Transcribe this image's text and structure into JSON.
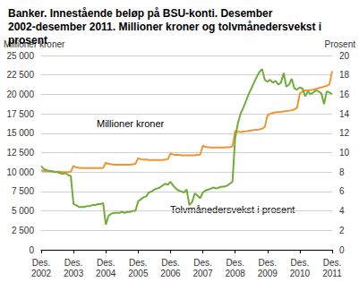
{
  "chart_data": {
    "type": "line",
    "title": "Banker. Innestående beløp på BSU-konti. Desember 2002-desember 2011. Millioner kroner og tolvmånedersvekst i prosent",
    "ylabel": "Millioner kroner",
    "y2label": "Prosent",
    "annotations": [
      {
        "text": "Millioner kroner"
      },
      {
        "text": "Tolvmånedersvekst i prosent"
      }
    ],
    "x": [
      "Des.\n2002",
      null,
      null,
      null,
      null,
      null,
      null,
      null,
      null,
      null,
      null,
      null,
      "Des.\n2003",
      null,
      null,
      null,
      null,
      null,
      null,
      null,
      null,
      null,
      null,
      null,
      "Des.\n2004",
      null,
      null,
      null,
      null,
      null,
      null,
      null,
      null,
      null,
      null,
      null,
      "Des.\n2005",
      null,
      null,
      null,
      null,
      null,
      null,
      null,
      null,
      null,
      null,
      null,
      "Des.\n2006",
      null,
      null,
      null,
      null,
      null,
      null,
      null,
      null,
      null,
      null,
      null,
      "Des.\n2007",
      null,
      null,
      null,
      null,
      null,
      null,
      null,
      null,
      null,
      null,
      null,
      "Des.\n2008",
      null,
      null,
      null,
      null,
      null,
      null,
      null,
      null,
      null,
      null,
      null,
      "Des.\n2009",
      null,
      null,
      null,
      null,
      null,
      null,
      null,
      null,
      null,
      null,
      null,
      "Des.\n2010",
      null,
      null,
      null,
      null,
      null,
      null,
      null,
      null,
      null,
      null,
      null,
      "Des.\n2011"
    ],
    "series": [
      {
        "name": "Millioner kroner",
        "color": "#f39433",
        "values": [
          10200,
          10150,
          10100,
          10100,
          10050,
          10050,
          10050,
          10050,
          10000,
          10000,
          10000,
          10050,
          10800,
          10600,
          10550,
          10500,
          10500,
          10500,
          10500,
          10500,
          10500,
          10500,
          10500,
          10550,
          11200,
          11050,
          11000,
          10950,
          10950,
          10950,
          10950,
          10950,
          10950,
          10950,
          11000,
          11050,
          11800,
          11650,
          11600,
          11600,
          11550,
          11550,
          11550,
          11550,
          11550,
          11550,
          11600,
          11650,
          12400,
          12250,
          12200,
          12200,
          12150,
          12150,
          12150,
          12150,
          12150,
          12150,
          12200,
          12250,
          13400,
          13250,
          13200,
          13150,
          13150,
          13150,
          13150,
          13150,
          13150,
          13200,
          13200,
          13300,
          15300,
          15200,
          15150,
          15200,
          15250,
          15300,
          15350,
          15400,
          15450,
          15500,
          15600,
          15800,
          17300,
          17500,
          17600,
          17700,
          17700,
          17750,
          17800,
          17850,
          17900,
          17950,
          18050,
          18300,
          20100,
          20400,
          20500,
          20500,
          20550,
          20600,
          20700,
          20800,
          20900,
          21000,
          21100,
          21300,
          23000
        ]
      },
      {
        "name": "Tolvmånedersvekst i prosent",
        "color": "#6fac3a",
        "axis": "y2",
        "values": [
          8.6,
          8.3,
          8.2,
          8.1,
          8.1,
          8.0,
          8.0,
          7.9,
          7.8,
          7.9,
          7.7,
          7.6,
          4.7,
          4.6,
          4.4,
          4.4,
          4.4,
          4.5,
          4.5,
          4.6,
          4.6,
          4.7,
          4.7,
          4.8,
          2.6,
          3.5,
          3.7,
          3.8,
          3.8,
          3.8,
          3.9,
          3.8,
          3.9,
          3.9,
          4.0,
          4.0,
          5.0,
          5.2,
          5.4,
          5.5,
          5.9,
          6.0,
          6.2,
          6.3,
          6.4,
          6.6,
          6.8,
          6.7,
          7.0,
          6.6,
          6.3,
          6.1,
          6.0,
          5.9,
          6.2,
          4.6,
          4.9,
          5.8,
          5.6,
          5.3,
          5.9,
          6.1,
          6.2,
          6.3,
          6.4,
          6.3,
          6.4,
          6.5,
          6.5,
          6.6,
          6.8,
          7.0,
          11.5,
          13.0,
          14.0,
          14.6,
          15.3,
          16.0,
          16.6,
          17.2,
          17.8,
          18.3,
          18.6,
          17.5,
          17.3,
          17.5,
          17.2,
          17.4,
          17.0,
          17.2,
          18.2,
          16.8,
          17.0,
          17.6,
          16.6,
          16.5,
          16.7,
          16.6,
          15.8,
          16.3,
          16.0,
          16.2,
          16.4,
          16.3,
          16.1,
          15.0,
          16.3,
          16.2,
          16.0
        ]
      }
    ],
    "ylim": [
      0,
      25000
    ],
    "yticks": [
      0,
      {
        "value": 2500,
        "label": "2 500"
      },
      {
        "value": 5000,
        "label": "5 000"
      },
      {
        "value": 7500,
        "label": "7 500"
      },
      {
        "value": 10000,
        "label": "10 000"
      },
      {
        "value": 12500,
        "label": "12 500"
      },
      {
        "value": 15000,
        "label": "15 000"
      },
      {
        "value": 17500,
        "label": "17 500"
      },
      {
        "value": 20000,
        "label": "20 000"
      },
      {
        "value": 22500,
        "label": "22 500"
      },
      {
        "value": 25000,
        "label": "25 000"
      }
    ],
    "y2lim": [
      0,
      20
    ],
    "y2ticks": [
      0,
      2,
      4,
      6,
      8,
      10,
      12,
      14,
      16,
      18,
      20
    ],
    "grid": true
  }
}
